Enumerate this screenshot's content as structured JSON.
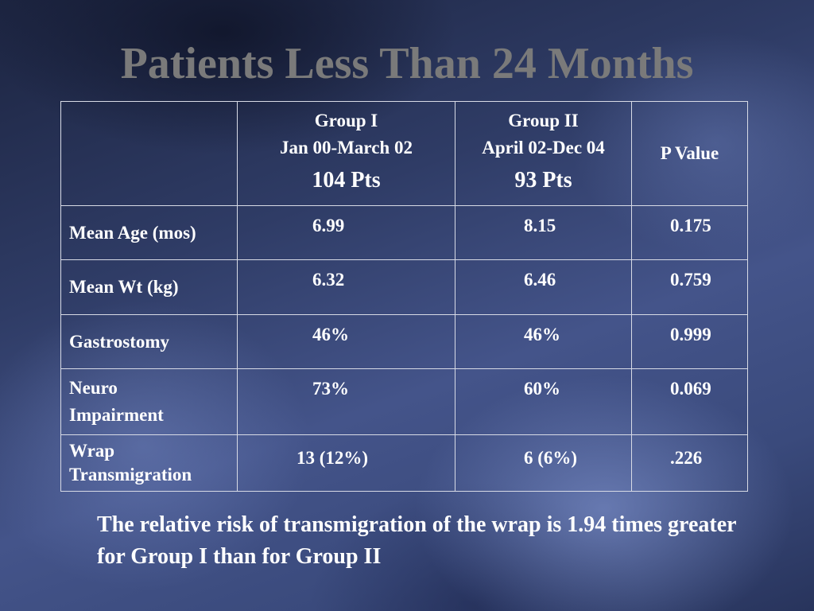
{
  "slide": {
    "title": "Patients Less Than 24 Months",
    "table": {
      "header": {
        "empty": "",
        "group1": {
          "name": "Group I",
          "dates": "Jan 00-March 02",
          "pts": "104 Pts"
        },
        "group2": {
          "name": "Group II",
          "dates": "April 02-Dec 04",
          "pts": "93 Pts"
        },
        "pvalue": "P Value"
      },
      "rows": [
        {
          "label": "Mean Age (mos)",
          "g1": "6.99",
          "g2": "8.15",
          "p": "0.175"
        },
        {
          "label": "Mean Wt (kg)",
          "g1": "6.32",
          "g2": "6.46",
          "p": "0.759"
        },
        {
          "label": "Gastrostomy",
          "g1": "46%",
          "g2": "46%",
          "p": "0.999"
        },
        {
          "label_line1": "Neuro",
          "label_line2": "Impairment",
          "g1": "73%",
          "g2": "60%",
          "p": "0.069"
        },
        {
          "label_line1": "Wrap",
          "label_line2": "Transmigration",
          "g1": "13 (12%)",
          "g2": "6 (6%)",
          "p": ".226"
        }
      ]
    },
    "note": "The relative risk of transmigration of the wrap is 1.94 times greater for Group I than for Group II"
  },
  "colors": {
    "title": "#7a7a7a",
    "text": "#ffffff",
    "border": "#d8dbe6",
    "background": "#34426e"
  }
}
